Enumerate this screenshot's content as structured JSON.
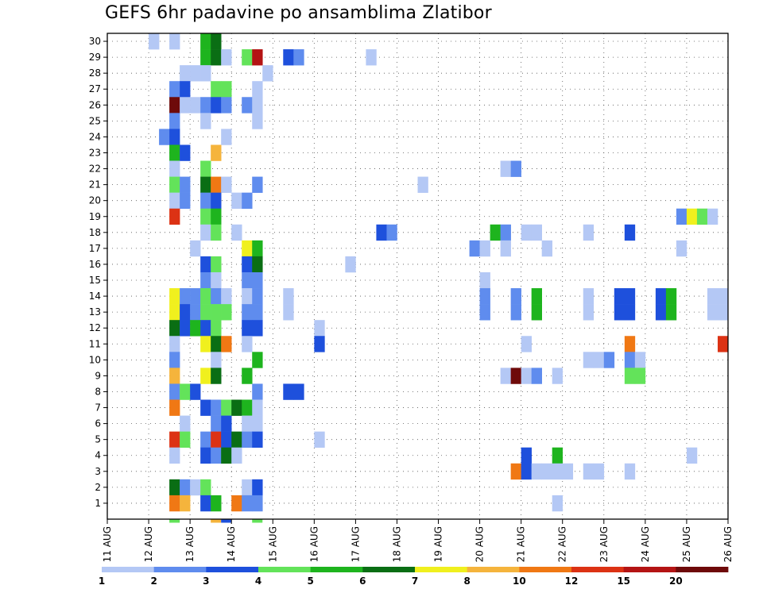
{
  "title": "GEFS 6hr padavine po ansamblima Zlatibor",
  "chart_data": {
    "type": "heatmap",
    "title": "GEFS 6hr padavine po ansamblima Zlatibor",
    "xlabel": "",
    "ylabel": "",
    "x_ticks": [
      "11 AUG",
      "12 AUG",
      "13 AUG",
      "14 AUG",
      "15 AUG",
      "16 AUG",
      "17 AUG",
      "18 AUG",
      "19 AUG",
      "20 AUG",
      "21 AUG",
      "22 AUG",
      "23 AUG",
      "24 AUG",
      "25 AUG",
      "26 AUG"
    ],
    "y_ticks": [
      "1",
      "2",
      "3",
      "4",
      "5",
      "6",
      "7",
      "8",
      "9",
      "10",
      "11",
      "12",
      "13",
      "14",
      "15",
      "16",
      "17",
      "18",
      "19",
      "20",
      "21",
      "22",
      "23",
      "24",
      "25",
      "26",
      "27",
      "28",
      "29",
      "30"
    ],
    "steps_per_day": 4,
    "time_steps": 60,
    "members": 30,
    "grid": true,
    "colorbar": {
      "labels": [
        "1",
        "2",
        "3",
        "4",
        "5",
        "6",
        "7",
        "8",
        "10",
        "12",
        "15",
        "20"
      ],
      "colors": [
        "#b4c8f5",
        "#5f8cee",
        "#1e50dc",
        "#63e35a",
        "#1eb41e",
        "#0a6e14",
        "#f0f01e",
        "#f5b43c",
        "#f07814",
        "#dc3214",
        "#b41414",
        "#6e0a0a"
      ]
    },
    "cells": [
      [
        30,
        4,
        0
      ],
      [
        30,
        6,
        0
      ],
      [
        30,
        9,
        4
      ],
      [
        30,
        10,
        5
      ],
      [
        29,
        9,
        4
      ],
      [
        29,
        10,
        5
      ],
      [
        29,
        11,
        0
      ],
      [
        29,
        13,
        3
      ],
      [
        29,
        14,
        10
      ],
      [
        29,
        17,
        2
      ],
      [
        29,
        18,
        1
      ],
      [
        29,
        25,
        0
      ],
      [
        28,
        7,
        0
      ],
      [
        28,
        8,
        0
      ],
      [
        28,
        9,
        0
      ],
      [
        28,
        15,
        0
      ],
      [
        27,
        6,
        1
      ],
      [
        27,
        7,
        2
      ],
      [
        27,
        10,
        3
      ],
      [
        27,
        11,
        3
      ],
      [
        27,
        14,
        0
      ],
      [
        26,
        6,
        11
      ],
      [
        26,
        7,
        0
      ],
      [
        26,
        8,
        0
      ],
      [
        26,
        9,
        1
      ],
      [
        26,
        10,
        2
      ],
      [
        26,
        11,
        1
      ],
      [
        26,
        13,
        1
      ],
      [
        26,
        14,
        0
      ],
      [
        25,
        6,
        1
      ],
      [
        25,
        9,
        0
      ],
      [
        25,
        14,
        0
      ],
      [
        24,
        5,
        1
      ],
      [
        24,
        6,
        2
      ],
      [
        24,
        11,
        0
      ],
      [
        23,
        6,
        4
      ],
      [
        23,
        7,
        2
      ],
      [
        23,
        10,
        7
      ],
      [
        22,
        6,
        0
      ],
      [
        22,
        9,
        3
      ],
      [
        22,
        38,
        0
      ],
      [
        22,
        39,
        1
      ],
      [
        21,
        6,
        3
      ],
      [
        21,
        7,
        1
      ],
      [
        21,
        9,
        5
      ],
      [
        21,
        10,
        8
      ],
      [
        21,
        11,
        0
      ],
      [
        21,
        14,
        1
      ],
      [
        21,
        30,
        0
      ],
      [
        20,
        6,
        0
      ],
      [
        20,
        7,
        1
      ],
      [
        20,
        9,
        1
      ],
      [
        20,
        10,
        2
      ],
      [
        20,
        12,
        0
      ],
      [
        20,
        13,
        1
      ],
      [
        19,
        6,
        9
      ],
      [
        19,
        9,
        3
      ],
      [
        19,
        10,
        4
      ],
      [
        19,
        55,
        1
      ],
      [
        19,
        56,
        6
      ],
      [
        19,
        57,
        3
      ],
      [
        19,
        58,
        0
      ],
      [
        18,
        9,
        0
      ],
      [
        18,
        10,
        3
      ],
      [
        18,
        12,
        0
      ],
      [
        18,
        26,
        2
      ],
      [
        18,
        27,
        1
      ],
      [
        18,
        37,
        4
      ],
      [
        18,
        38,
        1
      ],
      [
        18,
        40,
        0
      ],
      [
        18,
        41,
        0
      ],
      [
        18,
        46,
        0
      ],
      [
        18,
        50,
        2
      ],
      [
        17,
        8,
        0
      ],
      [
        17,
        13,
        6
      ],
      [
        17,
        14,
        4
      ],
      [
        17,
        35,
        1
      ],
      [
        17,
        36,
        0
      ],
      [
        17,
        38,
        0
      ],
      [
        17,
        42,
        0
      ],
      [
        17,
        55,
        0
      ],
      [
        16,
        9,
        2
      ],
      [
        16,
        10,
        3
      ],
      [
        16,
        13,
        2
      ],
      [
        16,
        14,
        5
      ],
      [
        16,
        23,
        0
      ],
      [
        15,
        9,
        1
      ],
      [
        15,
        10,
        0
      ],
      [
        15,
        13,
        1
      ],
      [
        15,
        14,
        1
      ],
      [
        15,
        36,
        0
      ],
      [
        14,
        6,
        6
      ],
      [
        14,
        7,
        1
      ],
      [
        14,
        8,
        1
      ],
      [
        14,
        9,
        3
      ],
      [
        14,
        10,
        1
      ],
      [
        14,
        11,
        0
      ],
      [
        14,
        13,
        0
      ],
      [
        14,
        14,
        1
      ],
      [
        14,
        17,
        0
      ],
      [
        14,
        36,
        1
      ],
      [
        14,
        39,
        1
      ],
      [
        14,
        41,
        4
      ],
      [
        14,
        46,
        0
      ],
      [
        14,
        49,
        2
      ],
      [
        14,
        50,
        2
      ],
      [
        14,
        53,
        2
      ],
      [
        14,
        54,
        4
      ],
      [
        14,
        58,
        0
      ],
      [
        14,
        59,
        0
      ],
      [
        13,
        6,
        6
      ],
      [
        13,
        7,
        2
      ],
      [
        13,
        8,
        1
      ],
      [
        13,
        9,
        3
      ],
      [
        13,
        10,
        3
      ],
      [
        13,
        11,
        3
      ],
      [
        13,
        13,
        1
      ],
      [
        13,
        14,
        1
      ],
      [
        13,
        17,
        0
      ],
      [
        13,
        36,
        1
      ],
      [
        13,
        39,
        1
      ],
      [
        13,
        41,
        4
      ],
      [
        13,
        46,
        0
      ],
      [
        13,
        49,
        2
      ],
      [
        13,
        50,
        2
      ],
      [
        13,
        53,
        2
      ],
      [
        13,
        54,
        4
      ],
      [
        13,
        58,
        0
      ],
      [
        13,
        59,
        0
      ],
      [
        12,
        6,
        5
      ],
      [
        12,
        7,
        2
      ],
      [
        12,
        8,
        4
      ],
      [
        12,
        9,
        2
      ],
      [
        12,
        10,
        3
      ],
      [
        12,
        13,
        2
      ],
      [
        12,
        14,
        2
      ],
      [
        12,
        20,
        0
      ],
      [
        11,
        6,
        0
      ],
      [
        11,
        9,
        6
      ],
      [
        11,
        10,
        5
      ],
      [
        11,
        11,
        8
      ],
      [
        11,
        13,
        0
      ],
      [
        11,
        20,
        2
      ],
      [
        11,
        40,
        0
      ],
      [
        11,
        50,
        8
      ],
      [
        11,
        59,
        9
      ],
      [
        11,
        60,
        1
      ],
      [
        10,
        6,
        1
      ],
      [
        10,
        10,
        0
      ],
      [
        10,
        14,
        4
      ],
      [
        10,
        46,
        0
      ],
      [
        10,
        47,
        0
      ],
      [
        10,
        48,
        1
      ],
      [
        10,
        50,
        1
      ],
      [
        10,
        51,
        0
      ],
      [
        9,
        6,
        7
      ],
      [
        9,
        9,
        6
      ],
      [
        9,
        10,
        5
      ],
      [
        9,
        13,
        4
      ],
      [
        9,
        38,
        0
      ],
      [
        9,
        39,
        11
      ],
      [
        9,
        40,
        0
      ],
      [
        9,
        41,
        1
      ],
      [
        9,
        43,
        0
      ],
      [
        9,
        50,
        3
      ],
      [
        9,
        51,
        3
      ],
      [
        8,
        6,
        1
      ],
      [
        8,
        7,
        3
      ],
      [
        8,
        8,
        2
      ],
      [
        8,
        14,
        1
      ],
      [
        8,
        17,
        2
      ],
      [
        8,
        18,
        2
      ],
      [
        7,
        6,
        8
      ],
      [
        7,
        9,
        2
      ],
      [
        7,
        10,
        1
      ],
      [
        7,
        11,
        3
      ],
      [
        7,
        12,
        5
      ],
      [
        7,
        13,
        4
      ],
      [
        7,
        14,
        0
      ],
      [
        6,
        7,
        0
      ],
      [
        6,
        10,
        1
      ],
      [
        6,
        11,
        2
      ],
      [
        6,
        13,
        0
      ],
      [
        6,
        14,
        0
      ],
      [
        5,
        6,
        9
      ],
      [
        5,
        7,
        3
      ],
      [
        5,
        9,
        1
      ],
      [
        5,
        10,
        9
      ],
      [
        5,
        11,
        2
      ],
      [
        5,
        12,
        5
      ],
      [
        5,
        13,
        1
      ],
      [
        5,
        14,
        2
      ],
      [
        5,
        20,
        0
      ],
      [
        4,
        6,
        0
      ],
      [
        4,
        9,
        2
      ],
      [
        4,
        10,
        1
      ],
      [
        4,
        11,
        5
      ],
      [
        4,
        12,
        0
      ],
      [
        4,
        40,
        2
      ],
      [
        4,
        43,
        4
      ],
      [
        4,
        56,
        0
      ],
      [
        3,
        39,
        8
      ],
      [
        3,
        40,
        2
      ],
      [
        3,
        41,
        0
      ],
      [
        3,
        42,
        0
      ],
      [
        3,
        43,
        0
      ],
      [
        3,
        44,
        0
      ],
      [
        3,
        46,
        0
      ],
      [
        3,
        47,
        0
      ],
      [
        3,
        50,
        0
      ],
      [
        2,
        6,
        5
      ],
      [
        2,
        7,
        1
      ],
      [
        2,
        8,
        0
      ],
      [
        2,
        9,
        3
      ],
      [
        2,
        13,
        0
      ],
      [
        2,
        14,
        2
      ],
      [
        1,
        6,
        8
      ],
      [
        1,
        7,
        7
      ],
      [
        1,
        9,
        2
      ],
      [
        1,
        10,
        4
      ],
      [
        1,
        12,
        8
      ],
      [
        1,
        13,
        1
      ],
      [
        1,
        14,
        1
      ],
      [
        1,
        43,
        0
      ]
    ],
    "below_axis_cells": [
      [
        6,
        3
      ],
      [
        10,
        7
      ],
      [
        11,
        2
      ],
      [
        14,
        3
      ]
    ]
  }
}
